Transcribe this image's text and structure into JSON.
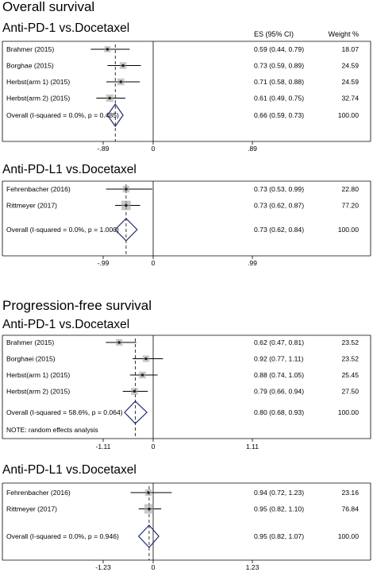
{
  "chart_data": {
    "type": "forest",
    "columns": {
      "es": "ES (95% CI)",
      "weight": "Weight %"
    },
    "sections": [
      {
        "title": "Overall survival",
        "panels": [
          {
            "subtitle": "Anti-PD-1 vs.Docetaxel",
            "show_header": true,
            "xticks": [
              "-.89",
              "0",
              ".89"
            ],
            "null_line": 1.0,
            "overall_line": 0.66,
            "xrange": [
              0.11,
              1.89
            ],
            "studies": [
              {
                "label": "Brahmer (2015)",
                "es": 0.59,
                "lo": 0.44,
                "hi": 0.79,
                "ci_text": "0.59 (0.44, 0.79)",
                "weight": "18.07"
              },
              {
                "label": "Borghae (2015)",
                "es": 0.73,
                "lo": 0.59,
                "hi": 0.89,
                "ci_text": "0.73 (0.59, 0.89)",
                "weight": "24.59"
              },
              {
                "label": "Herbst(arm 1) (2015)",
                "es": 0.71,
                "lo": 0.58,
                "hi": 0.88,
                "ci_text": "0.71 (0.58, 0.88)",
                "weight": "24.59"
              },
              {
                "label": "Herbst(arm 2) (2015)",
                "es": 0.61,
                "lo": 0.49,
                "hi": 0.75,
                "ci_text": "0.61 (0.49, 0.75)",
                "weight": "32.74"
              }
            ],
            "overall": {
              "label": "Overall  (I-squared = 0.0%, p = 0.485)",
              "es": 0.66,
              "lo": 0.59,
              "hi": 0.73,
              "ci_text": "0.66 (0.59, 0.73)",
              "weight": "100.00"
            },
            "note": ""
          },
          {
            "subtitle": "Anti-PD-L1 vs.Docetaxel",
            "show_header": false,
            "xticks": [
              "-.99",
              "0",
              ".99"
            ],
            "null_line": 1.0,
            "overall_line": 0.73,
            "xrange": [
              0.01,
              1.99
            ],
            "studies": [
              {
                "label": "Fehrenbacher (2016)",
                "es": 0.73,
                "lo": 0.53,
                "hi": 0.99,
                "ci_text": "0.73 (0.53, 0.99)",
                "weight": "22.80"
              },
              {
                "label": "Rittmeyer (2017)",
                "es": 0.73,
                "lo": 0.62,
                "hi": 0.87,
                "ci_text": "0.73 (0.62, 0.87)",
                "weight": "77.20"
              }
            ],
            "overall": {
              "label": "Overall  (I-squared = 0.0%, p = 1.000)",
              "es": 0.73,
              "lo": 0.62,
              "hi": 0.84,
              "ci_text": "0.73 (0.62, 0.84)",
              "weight": "100.00"
            },
            "note": ""
          }
        ]
      },
      {
        "title": "Progression-free survival",
        "panels": [
          {
            "subtitle": "Anti-PD-1 vs.Docetaxel",
            "show_header": false,
            "xticks": [
              "-1.11",
              "0",
              "1.11"
            ],
            "null_line": 1.0,
            "overall_line": 0.8,
            "xrange": [
              -0.11,
              2.11
            ],
            "studies": [
              {
                "label": "Brahmer (2015)",
                "es": 0.62,
                "lo": 0.47,
                "hi": 0.81,
                "ci_text": "0.62 (0.47, 0.81)",
                "weight": "23.52"
              },
              {
                "label": "Borghaei (2015)",
                "es": 0.92,
                "lo": 0.77,
                "hi": 1.11,
                "ci_text": "0.92 (0.77, 1.11)",
                "weight": "23.52"
              },
              {
                "label": "Herbst(arm 1) (2015)",
                "es": 0.88,
                "lo": 0.74,
                "hi": 1.05,
                "ci_text": "0.88 (0.74, 1.05)",
                "weight": "25.45"
              },
              {
                "label": "Herbst(arm 2) (2015)",
                "es": 0.79,
                "lo": 0.66,
                "hi": 0.94,
                "ci_text": "0.79 (0.66, 0.94)",
                "weight": "27.50"
              }
            ],
            "overall": {
              "label": "Overall  (I-squared = 58.6%, p = 0.064)",
              "es": 0.8,
              "lo": 0.68,
              "hi": 0.93,
              "ci_text": "0.80 (0.68, 0.93)",
              "weight": "100.00"
            },
            "note": "NOTE: random effects analysis"
          },
          {
            "subtitle": "Anti-PD-L1 vs.Docetaxel",
            "show_header": false,
            "xticks": [
              "-1.23",
              "0",
              "1.23"
            ],
            "null_line": 1.0,
            "overall_line": 0.95,
            "xrange": [
              -0.23,
              2.23
            ],
            "studies": [
              {
                "label": "Fehrenbacher (2016)",
                "es": 0.94,
                "lo": 0.72,
                "hi": 1.23,
                "ci_text": "0.94 (0.72, 1.23)",
                "weight": "23.16"
              },
              {
                "label": "Rittmeyer (2017)",
                "es": 0.95,
                "lo": 0.82,
                "hi": 1.1,
                "ci_text": "0.95 (0.82, 1.10)",
                "weight": "76.84"
              }
            ],
            "overall": {
              "label": "Overall  (I-squared = 0.0%, p = 0.946)",
              "es": 0.95,
              "lo": 0.82,
              "hi": 1.07,
              "ci_text": "0.95 (0.82, 1.07)",
              "weight": "100.00"
            },
            "note": ""
          }
        ]
      }
    ],
    "colors": {
      "diamond": "#1f2a6e",
      "marker": "#222222",
      "weight_box": "#9a9a9a",
      "axis": "#000000"
    }
  }
}
